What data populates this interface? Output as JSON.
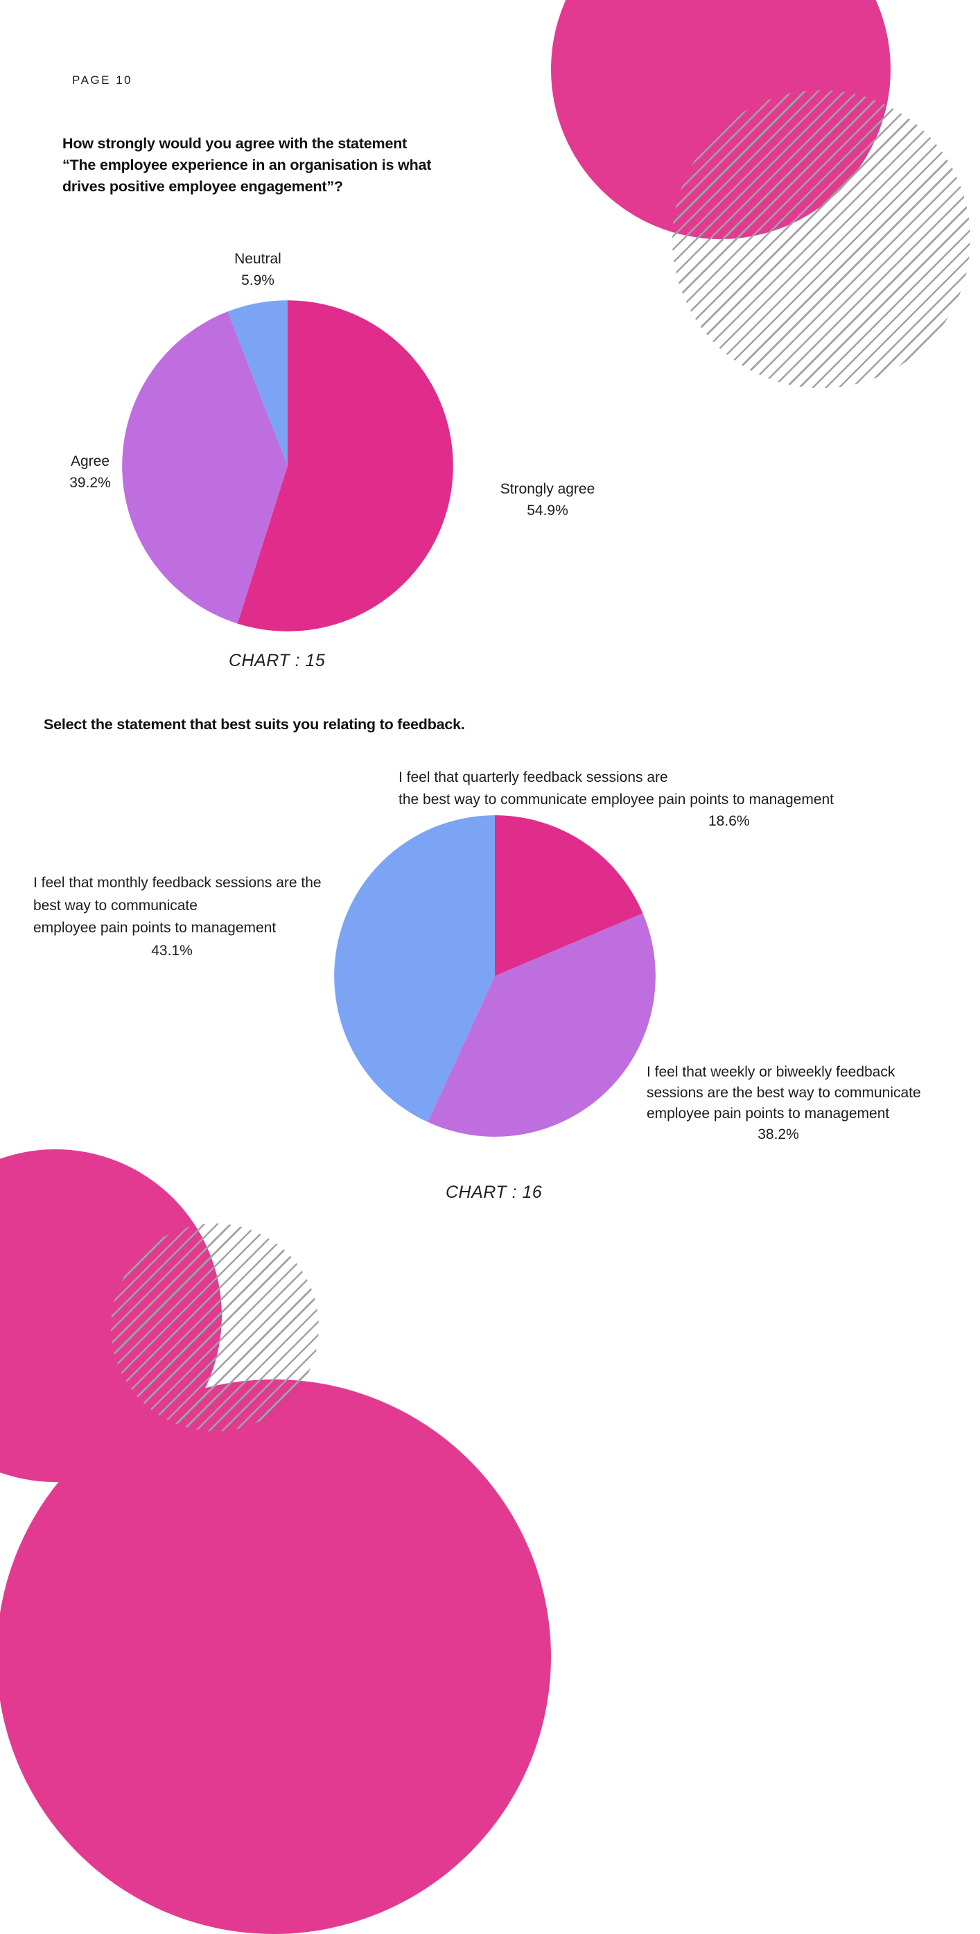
{
  "page": {
    "label": "PAGE 10"
  },
  "sections": [
    {
      "heading": "How strongly would you agree with the statement\n“The employee experience in an organisation is what\ndrives positive employee engagement”?",
      "caption": "CHART : 15"
    },
    {
      "heading": "Select the statement that best suits you relating to feedback.",
      "caption": "CHART : 16"
    }
  ],
  "colors": {
    "pie_pink": "#E02C8B",
    "pie_purple": "#BE6EDF",
    "pie_blue": "#7BA4F4",
    "decor_pink": "#E23A91",
    "hatch_gray": "#A2A2A2"
  },
  "chart_data": [
    {
      "type": "pie",
      "title": "How strongly would you agree with the statement “The employee experience in an organisation is what drives positive employee engagement”?",
      "start_angle_deg": 0,
      "direction": "clockwise",
      "legend_position": "around-slices",
      "slices": [
        {
          "label": "Strongly agree",
          "value": 54.9,
          "color": "#E02C8B"
        },
        {
          "label": "Agree",
          "value": 39.2,
          "color": "#BE6EDF"
        },
        {
          "label": "Neutral",
          "value": 5.9,
          "color": "#7BA4F4"
        }
      ],
      "callouts": {
        "neutral": [
          "Neutral",
          "5.9%"
        ],
        "agree": [
          "Agree",
          "39.2%"
        ],
        "strongly": [
          "Strongly agree",
          "54.9%"
        ]
      }
    },
    {
      "type": "pie",
      "title": "Select the statement that best suits you relating to feedback.",
      "start_angle_deg": 0,
      "direction": "clockwise",
      "legend_position": "around-slices",
      "slices": [
        {
          "label": "I feel that quarterly feedback sessions are the best way to communicate employee pain points to management",
          "value": 18.6,
          "color": "#E02C8B"
        },
        {
          "label": "I feel that weekly or biweekly feedback sessions are the best way to communicate employee pain points to management",
          "value": 38.2,
          "color": "#BE6EDF"
        },
        {
          "label": "I feel that monthly feedback sessions are the best way to communicate employee pain points to management",
          "value": 43.1,
          "color": "#7BA4F4"
        }
      ],
      "callouts": {
        "quarterly": {
          "lines": [
            "I feel that quarterly feedback sessions are",
            "the best way to communicate employee pain points to management"
          ],
          "pct": "18.6%"
        },
        "monthly": {
          "lines": [
            "I feel that monthly feedback sessions are the",
            "best way to communicate",
            "employee pain points to management"
          ],
          "pct": "43.1%"
        },
        "weekly": {
          "lines": [
            "I feel that weekly or biweekly feedback",
            "sessions are the best way to communicate",
            "employee pain points to management"
          ],
          "pct": "38.2%"
        }
      }
    }
  ]
}
